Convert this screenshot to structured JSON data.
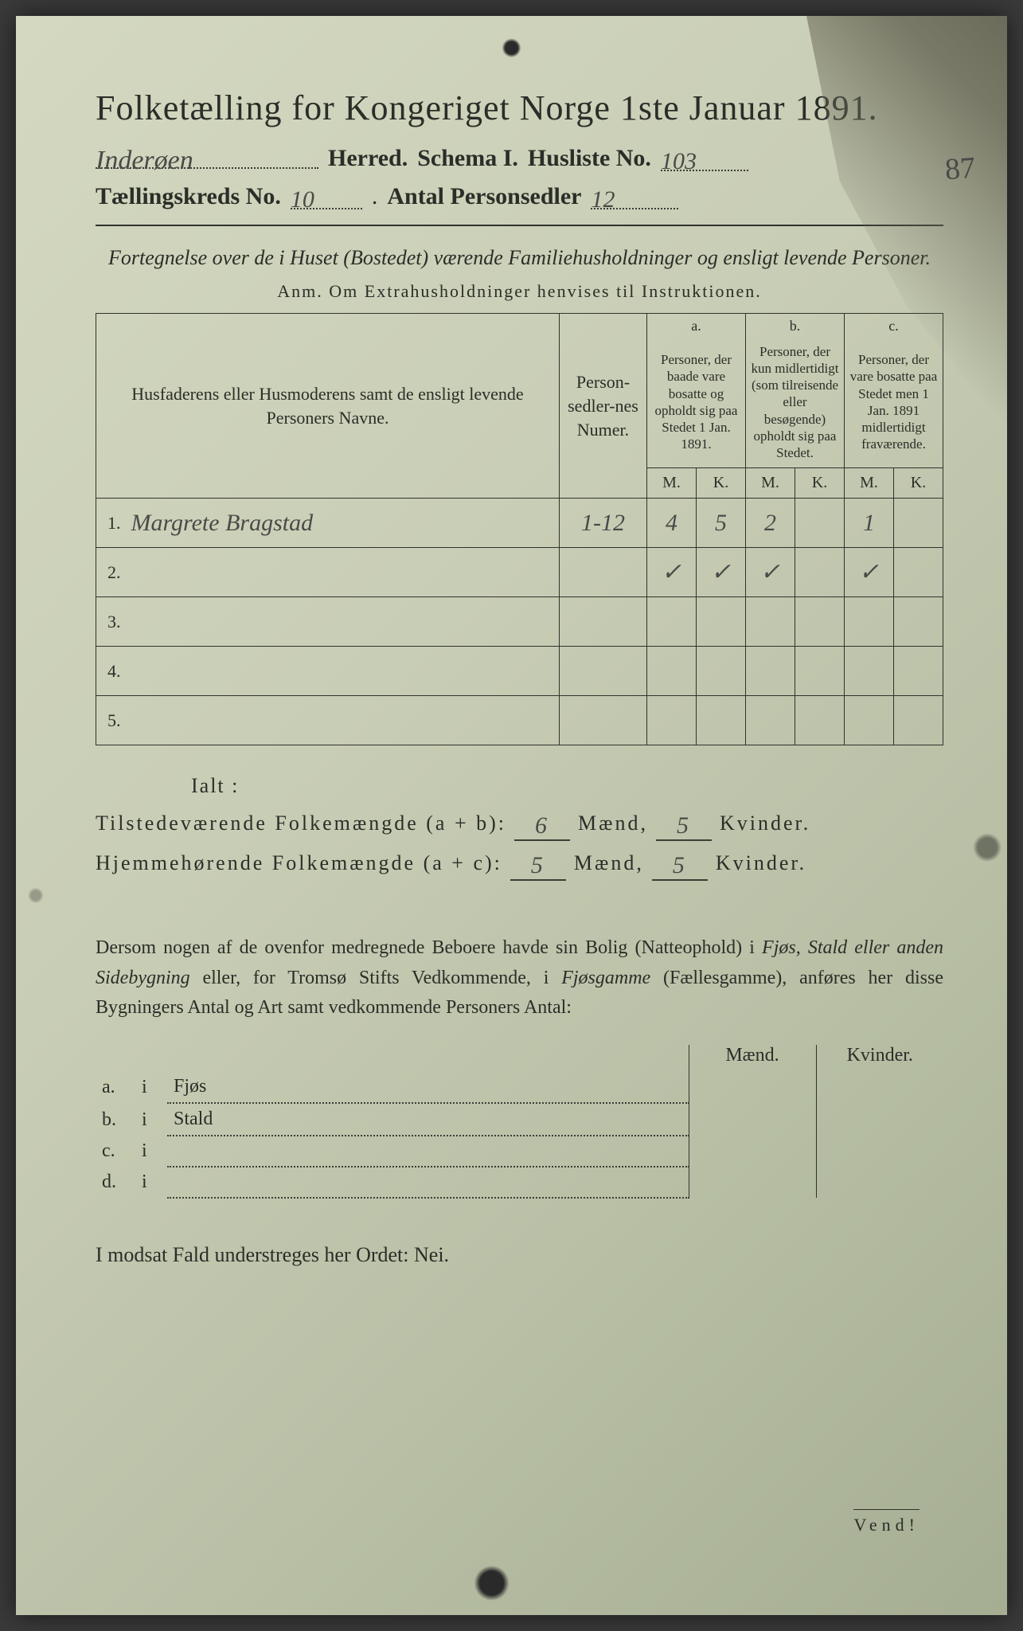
{
  "document": {
    "title": "Folketælling for Kongeriget Norge 1ste Januar 1891.",
    "herred_label": "Herred.",
    "herred_value": "Inderøen",
    "schema_label": "Schema I.",
    "husliste_label": "Husliste No.",
    "husliste_value": "103",
    "margin_number": "87",
    "kreds_label": "Tællingskreds No.",
    "kreds_value": "10",
    "antal_label": "Antal Personsedler",
    "antal_value": "12",
    "subtitle": "Fortegnelse over de i Huset (Bostedet) værende Familiehusholdninger og ensligt levende Personer.",
    "anm": "Anm.  Om Extrahusholdninger henvises til Instruktionen."
  },
  "table": {
    "col_names": "Husfaderens eller Husmoderens samt de ensligt levende Personers Navne.",
    "col_numer": "Person-sedler-nes Numer.",
    "group_a": "a.",
    "group_b": "b.",
    "group_c": "c.",
    "desc_a": "Personer, der baade vare bosatte og opholdt sig paa Stedet 1 Jan. 1891.",
    "desc_b": "Personer, der kun midlertidigt (som tilreisende eller besøgende) opholdt sig paa Stedet.",
    "desc_c": "Personer, der vare bosatte paa Stedet men 1 Jan. 1891 midlertidigt fraværende.",
    "M": "M.",
    "K": "K.",
    "rows": [
      {
        "n": "1.",
        "name": "Margrete Bragstad",
        "numer": "1-12",
        "aM": "4",
        "aK": "5",
        "bM": "2",
        "bK": "",
        "cM": "1",
        "cK": ""
      },
      {
        "n": "2.",
        "name": "",
        "numer": "",
        "aM": "✓",
        "aK": "✓",
        "bM": "✓",
        "bK": "",
        "cM": "✓",
        "cK": ""
      },
      {
        "n": "3.",
        "name": "",
        "numer": "",
        "aM": "",
        "aK": "",
        "bM": "",
        "bK": "",
        "cM": "",
        "cK": ""
      },
      {
        "n": "4.",
        "name": "",
        "numer": "",
        "aM": "",
        "aK": "",
        "bM": "",
        "bK": "",
        "cM": "",
        "cK": ""
      },
      {
        "n": "5.",
        "name": "",
        "numer": "",
        "aM": "",
        "aK": "",
        "bM": "",
        "bK": "",
        "cM": "",
        "cK": ""
      }
    ]
  },
  "totals": {
    "ialt": "Ialt :",
    "line1_label": "Tilstedeværende Folkemængde (a + b):",
    "line1_m": "6",
    "line1_k": "5",
    "line2_label": "Hjemmehørende Folkemængde (a + c):",
    "line2_m": "5",
    "line2_k": "5",
    "maend": "Mænd,",
    "kvinder": "Kvinder."
  },
  "paragraph": {
    "text_1": "Dersom nogen af de ovenfor medregnede Beboere havde sin Bolig (Natteophold) i ",
    "it_1": "Fjøs, Stald eller anden Sidebygning",
    "text_2": " eller, for Tromsø Stifts Vedkommende, i ",
    "it_2": "Fjøsgamme",
    "text_3": " (Fællesgamme), anføres her disse Bygningers Antal og Art samt vedkommende Personers Antal:"
  },
  "small_table": {
    "head_m": "Mænd.",
    "head_k": "Kvinder.",
    "rows": [
      {
        "k": "a.",
        "i": "i",
        "label": "Fjøs"
      },
      {
        "k": "b.",
        "i": "i",
        "label": "Stald"
      },
      {
        "k": "c.",
        "i": "i",
        "label": ""
      },
      {
        "k": "d.",
        "i": "i",
        "label": ""
      }
    ]
  },
  "footer": {
    "nei": "I modsat Fald understreges her Ordet: Nei.",
    "vend": "Vend!"
  },
  "colors": {
    "paper": "#c8cdb5",
    "ink": "#2a2e28",
    "handwriting": "#4a4a48"
  }
}
